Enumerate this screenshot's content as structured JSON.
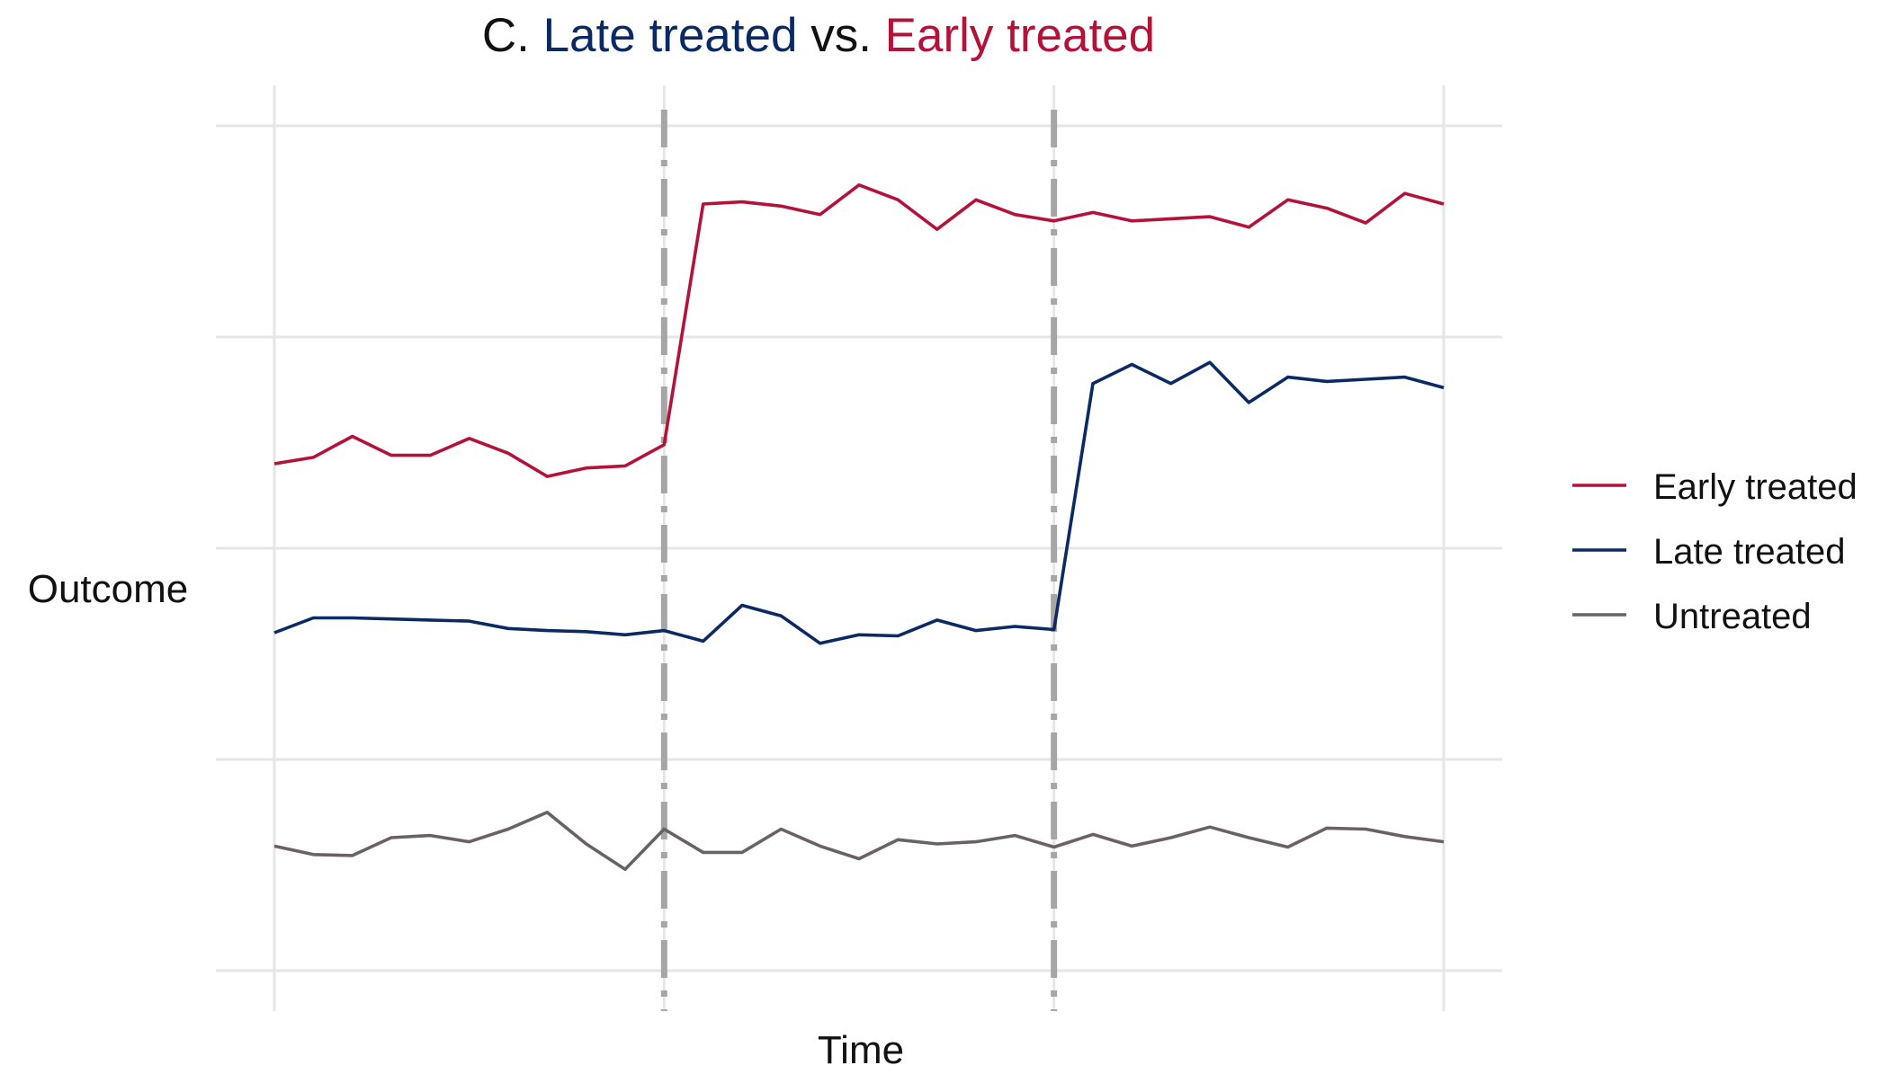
{
  "chart_data": {
    "type": "line",
    "title_parts": [
      {
        "text": "C. ",
        "color": "#111111"
      },
      {
        "text": "Late treated",
        "color": "#0b2a63"
      },
      {
        "text": " vs. ",
        "color": "#111111"
      },
      {
        "text": "Early treated",
        "color": "#b5123a"
      }
    ],
    "xlabel": "Time",
    "ylabel": "Outcome",
    "x": [
      1,
      2,
      3,
      4,
      5,
      6,
      7,
      8,
      9,
      10,
      11,
      12,
      13,
      14,
      15,
      16,
      17,
      18,
      19,
      20,
      21,
      22,
      23,
      24,
      25,
      26,
      27,
      28,
      29,
      30,
      31
    ],
    "xlim": [
      1,
      31
    ],
    "ylim": [
      0,
      4
    ],
    "grid": true,
    "tick_labels": false,
    "legend_position": "right",
    "treatment_times": [
      11,
      21
    ],
    "series": [
      {
        "name": "Early treated",
        "color": "#b5123a",
        "values": [
          2.4,
          2.43,
          2.53,
          2.44,
          2.44,
          2.52,
          2.45,
          2.34,
          2.38,
          2.39,
          2.49,
          3.63,
          3.64,
          3.62,
          3.58,
          3.72,
          3.65,
          3.51,
          3.65,
          3.58,
          3.55,
          3.59,
          3.55,
          3.56,
          3.57,
          3.52,
          3.65,
          3.61,
          3.54,
          3.68,
          3.63
        ]
      },
      {
        "name": "Late treated",
        "color": "#0b2a63",
        "values": [
          1.6,
          1.67,
          1.67,
          1.665,
          1.66,
          1.655,
          1.62,
          1.61,
          1.605,
          1.59,
          1.61,
          1.56,
          1.73,
          1.68,
          1.55,
          1.59,
          1.585,
          1.66,
          1.61,
          1.63,
          1.615,
          2.78,
          2.87,
          2.78,
          2.88,
          2.69,
          2.81,
          2.79,
          2.8,
          2.81,
          2.76
        ]
      },
      {
        "name": "Untreated",
        "color": "#6a6163",
        "values": [
          0.59,
          0.55,
          0.545,
          0.63,
          0.64,
          0.61,
          0.67,
          0.75,
          0.6,
          0.48,
          0.67,
          0.56,
          0.56,
          0.67,
          0.59,
          0.53,
          0.62,
          0.6,
          0.61,
          0.64,
          0.585,
          0.645,
          0.59,
          0.63,
          0.68,
          0.63,
          0.585,
          0.675,
          0.67,
          0.635,
          0.61
        ]
      }
    ]
  }
}
